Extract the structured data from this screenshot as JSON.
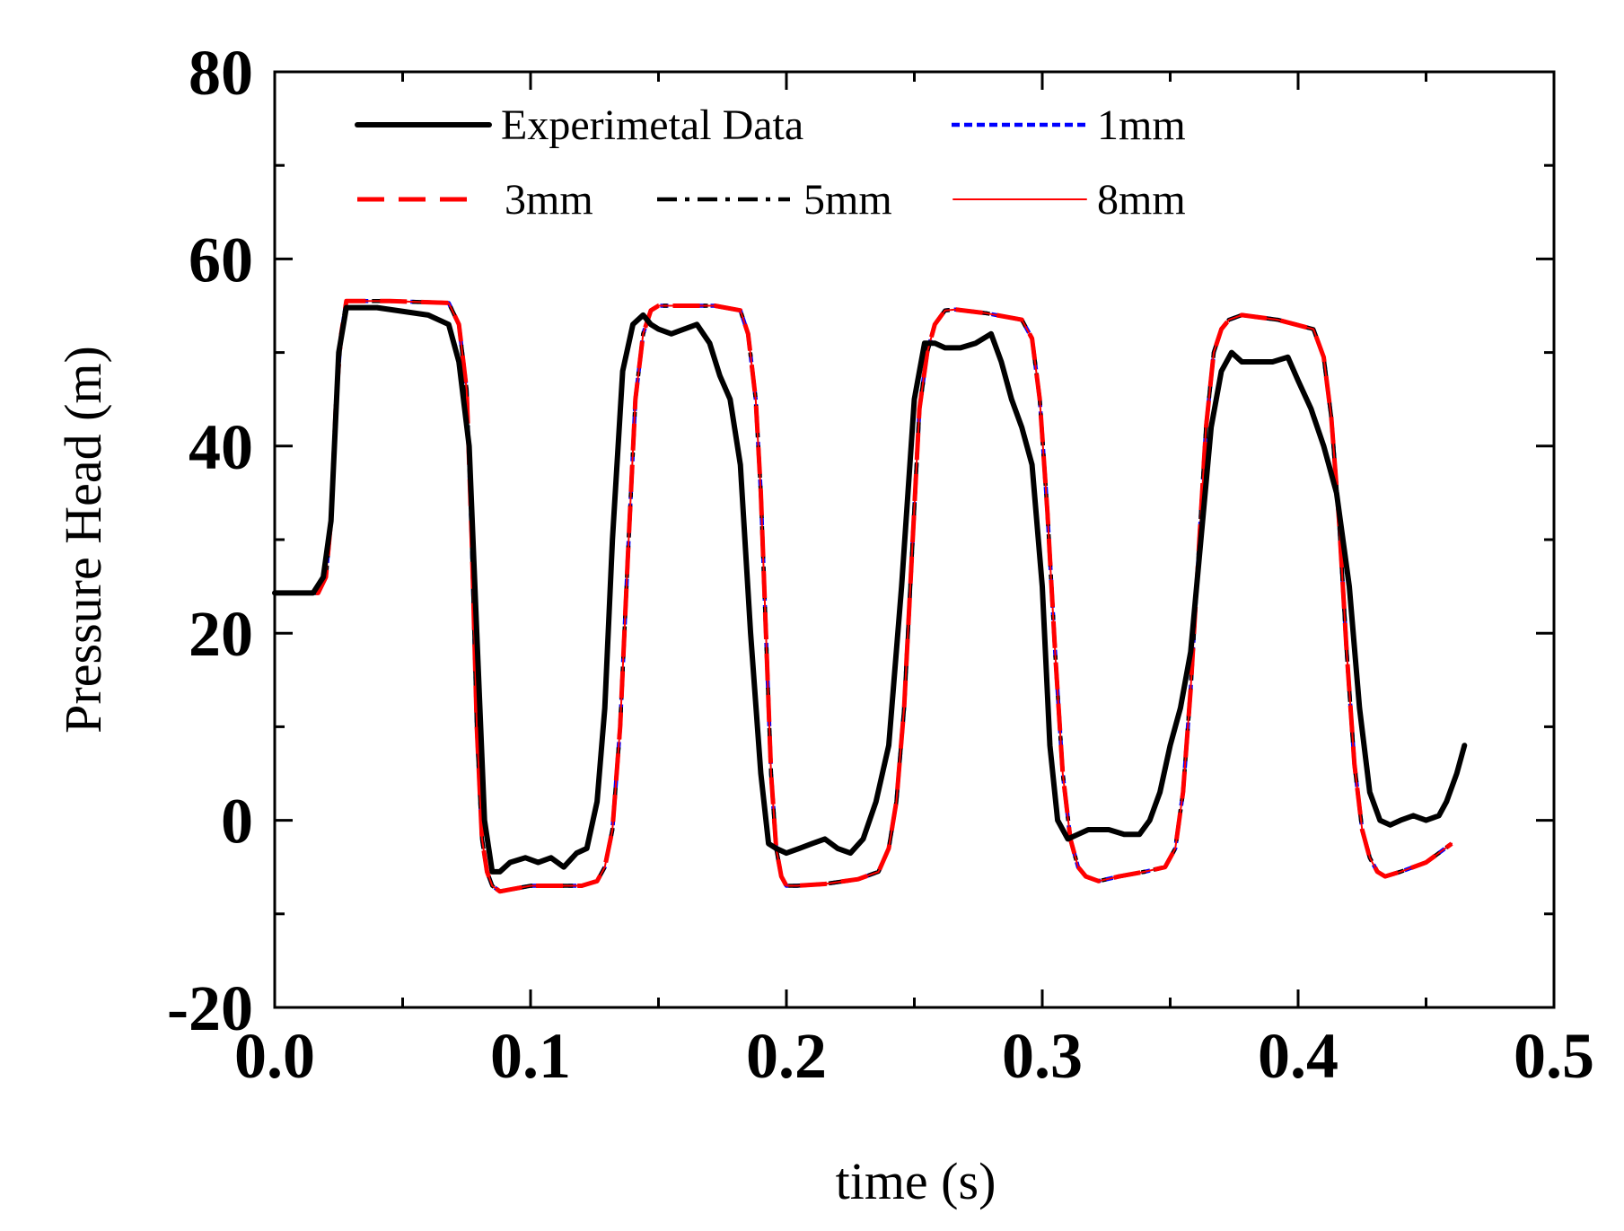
{
  "chart_data": {
    "type": "line",
    "title": "",
    "xlabel": "time (s)",
    "ylabel": "Pressure Head (m)",
    "xlim": [
      0.0,
      0.5
    ],
    "ylim": [
      -20,
      80
    ],
    "xticks": [
      0.0,
      0.1,
      0.2,
      0.3,
      0.4,
      0.5
    ],
    "xtick_labels": [
      "0.0",
      "0.1",
      "0.2",
      "0.3",
      "0.4",
      "0.5"
    ],
    "yticks": [
      -20,
      0,
      20,
      40,
      60,
      80
    ],
    "ytick_labels": [
      "-20",
      "0",
      "20",
      "40",
      "60",
      "80"
    ],
    "grid": false,
    "legend_position": "top",
    "series": [
      {
        "name": "Experimetal Data",
        "color": "#000000",
        "style": "solid-thick",
        "x": [
          0.0,
          0.015,
          0.019,
          0.022,
          0.025,
          0.028,
          0.04,
          0.06,
          0.068,
          0.072,
          0.076,
          0.079,
          0.082,
          0.085,
          0.088,
          0.092,
          0.098,
          0.103,
          0.108,
          0.113,
          0.118,
          0.122,
          0.126,
          0.129,
          0.132,
          0.136,
          0.14,
          0.144,
          0.147,
          0.15,
          0.155,
          0.16,
          0.165,
          0.17,
          0.174,
          0.178,
          0.182,
          0.186,
          0.19,
          0.193,
          0.196,
          0.2,
          0.205,
          0.21,
          0.215,
          0.22,
          0.225,
          0.23,
          0.235,
          0.24,
          0.245,
          0.25,
          0.254,
          0.258,
          0.262,
          0.268,
          0.274,
          0.28,
          0.284,
          0.288,
          0.292,
          0.296,
          0.3,
          0.303,
          0.306,
          0.31,
          0.314,
          0.318,
          0.322,
          0.326,
          0.332,
          0.338,
          0.342,
          0.346,
          0.35,
          0.354,
          0.358,
          0.362,
          0.366,
          0.37,
          0.374,
          0.378,
          0.384,
          0.39,
          0.396,
          0.4,
          0.405,
          0.41,
          0.415,
          0.42,
          0.424,
          0.428,
          0.432,
          0.436,
          0.44,
          0.445,
          0.45,
          0.455,
          0.458,
          0.462,
          0.465
        ],
        "y": [
          24.3,
          24.3,
          26,
          32,
          50,
          54.8,
          54.8,
          54,
          53,
          49,
          40,
          20,
          0,
          -5.5,
          -5.5,
          -4.5,
          -4,
          -4.5,
          -4,
          -5,
          -3.5,
          -3,
          2,
          12,
          30,
          48,
          53,
          54,
          53,
          52.5,
          52,
          52.5,
          53,
          51,
          47.5,
          45,
          38,
          20,
          5,
          -2.5,
          -3,
          -3.5,
          -3,
          -2.5,
          -2,
          -3,
          -3.5,
          -2,
          2,
          8,
          25,
          45,
          51,
          51,
          50.5,
          50.5,
          51,
          52,
          49,
          45,
          42,
          38,
          25,
          8,
          0,
          -2,
          -1.5,
          -1,
          -1,
          -1,
          -1.5,
          -1.5,
          0,
          3,
          8,
          12,
          18,
          30,
          42,
          48,
          50,
          49,
          49,
          49,
          49.5,
          47,
          44,
          40,
          35,
          25,
          12,
          3,
          0,
          -0.5,
          0,
          0.5,
          0,
          0.5,
          2,
          5,
          8
        ]
      },
      {
        "name": "1mm",
        "color": "#0000ff",
        "style": "dotted",
        "x": [
          0.0,
          0.017,
          0.02,
          0.022,
          0.024,
          0.026,
          0.028,
          0.045,
          0.068,
          0.072,
          0.075,
          0.077,
          0.079,
          0.081,
          0.083,
          0.085,
          0.088,
          0.092,
          0.1,
          0.11,
          0.12,
          0.126,
          0.129,
          0.132,
          0.135,
          0.138,
          0.141,
          0.144,
          0.147,
          0.15,
          0.16,
          0.172,
          0.182,
          0.185,
          0.188,
          0.19,
          0.192,
          0.194,
          0.196,
          0.198,
          0.2,
          0.204,
          0.215,
          0.228,
          0.236,
          0.24,
          0.243,
          0.246,
          0.249,
          0.252,
          0.255,
          0.258,
          0.262,
          0.266,
          0.278,
          0.292,
          0.296,
          0.299,
          0.302,
          0.305,
          0.308,
          0.311,
          0.314,
          0.317,
          0.322,
          0.33,
          0.34,
          0.348,
          0.352,
          0.355,
          0.358,
          0.361,
          0.364,
          0.367,
          0.37,
          0.373,
          0.378,
          0.392,
          0.406,
          0.41,
          0.413,
          0.416,
          0.419,
          0.422,
          0.425,
          0.428,
          0.431,
          0.434,
          0.44,
          0.45,
          0.46
        ],
        "y": [
          24.3,
          24.3,
          26,
          32,
          45,
          52,
          55.5,
          55.5,
          55.3,
          53,
          46,
          30,
          10,
          -2,
          -5.5,
          -7,
          -7.6,
          -7.4,
          -7,
          -7,
          -7,
          -6.5,
          -5,
          -1,
          10,
          28,
          45,
          52,
          54.5,
          55,
          55,
          55,
          54.5,
          52,
          45,
          35,
          20,
          5,
          -3,
          -6,
          -7,
          -7,
          -6.8,
          -6.3,
          -5.5,
          -3,
          2,
          12,
          28,
          44,
          50,
          53,
          54.5,
          54.6,
          54.2,
          53.5,
          51.5,
          45,
          33,
          18,
          5,
          -2,
          -5,
          -6,
          -6.5,
          -6,
          -5.5,
          -5,
          -3,
          3,
          14,
          28,
          42,
          50,
          52.5,
          53.5,
          54,
          53.5,
          52.5,
          49.5,
          43,
          32,
          18,
          6,
          -1,
          -4,
          -5.5,
          -6,
          -5.5,
          -4.5,
          -2.5
        ]
      },
      {
        "name": "3mm",
        "color": "#ff0000",
        "style": "dashed-long",
        "x": [
          0.0,
          0.017,
          0.02,
          0.022,
          0.024,
          0.026,
          0.028,
          0.045,
          0.068,
          0.072,
          0.075,
          0.077,
          0.079,
          0.081,
          0.083,
          0.085,
          0.088,
          0.092,
          0.1,
          0.11,
          0.12,
          0.126,
          0.129,
          0.132,
          0.135,
          0.138,
          0.141,
          0.144,
          0.147,
          0.15,
          0.16,
          0.172,
          0.182,
          0.185,
          0.188,
          0.19,
          0.192,
          0.194,
          0.196,
          0.198,
          0.2,
          0.204,
          0.215,
          0.228,
          0.236,
          0.24,
          0.243,
          0.246,
          0.249,
          0.252,
          0.255,
          0.258,
          0.262,
          0.266,
          0.278,
          0.292,
          0.296,
          0.299,
          0.302,
          0.305,
          0.308,
          0.311,
          0.314,
          0.317,
          0.322,
          0.33,
          0.34,
          0.348,
          0.352,
          0.355,
          0.358,
          0.361,
          0.364,
          0.367,
          0.37,
          0.373,
          0.378,
          0.392,
          0.406,
          0.41,
          0.413,
          0.416,
          0.419,
          0.422,
          0.425,
          0.428,
          0.431,
          0.434,
          0.44,
          0.45,
          0.46
        ],
        "y": [
          24.3,
          24.3,
          26,
          32,
          45,
          52,
          55.5,
          55.5,
          55.3,
          53,
          46,
          30,
          10,
          -2,
          -5.5,
          -7,
          -7.6,
          -7.4,
          -7,
          -7,
          -7,
          -6.5,
          -5,
          -1,
          10,
          28,
          45,
          52,
          54.5,
          55,
          55,
          55,
          54.5,
          52,
          45,
          35,
          20,
          5,
          -3,
          -6,
          -7,
          -7,
          -6.8,
          -6.3,
          -5.5,
          -3,
          2,
          12,
          28,
          44,
          50,
          53,
          54.5,
          54.6,
          54.2,
          53.5,
          51.5,
          45,
          33,
          18,
          5,
          -2,
          -5,
          -6,
          -6.5,
          -6,
          -5.5,
          -5,
          -3,
          3,
          14,
          28,
          42,
          50,
          52.5,
          53.5,
          54,
          53.5,
          52.5,
          49.5,
          43,
          32,
          18,
          6,
          -1,
          -4,
          -5.5,
          -6,
          -5.5,
          -4.5,
          -2.5
        ]
      },
      {
        "name": "5mm",
        "color": "#000000",
        "style": "dash-dot",
        "x": [
          0.0,
          0.017,
          0.02,
          0.022,
          0.024,
          0.026,
          0.028,
          0.045,
          0.068,
          0.072,
          0.075,
          0.077,
          0.079,
          0.081,
          0.083,
          0.085,
          0.088,
          0.092,
          0.1,
          0.11,
          0.12,
          0.126,
          0.129,
          0.132,
          0.135,
          0.138,
          0.141,
          0.144,
          0.147,
          0.15,
          0.16,
          0.172,
          0.182,
          0.185,
          0.188,
          0.19,
          0.192,
          0.194,
          0.196,
          0.198,
          0.2,
          0.204,
          0.215,
          0.228,
          0.236,
          0.24,
          0.243,
          0.246,
          0.249,
          0.252,
          0.255,
          0.258,
          0.262,
          0.266,
          0.278,
          0.292,
          0.296,
          0.299,
          0.302,
          0.305,
          0.308,
          0.311,
          0.314,
          0.317,
          0.322,
          0.33,
          0.34,
          0.348,
          0.352,
          0.355,
          0.358,
          0.361,
          0.364,
          0.367,
          0.37,
          0.373,
          0.378,
          0.392,
          0.406,
          0.41,
          0.413,
          0.416,
          0.419,
          0.422,
          0.425,
          0.428,
          0.431,
          0.434,
          0.44,
          0.45,
          0.46
        ],
        "y": [
          24.3,
          24.3,
          26,
          32,
          45,
          52,
          55.5,
          55.5,
          55.3,
          53,
          46,
          30,
          10,
          -2,
          -5.5,
          -7,
          -7.6,
          -7.4,
          -7,
          -7,
          -7,
          -6.5,
          -5,
          -1,
          10,
          28,
          45,
          52,
          54.5,
          55,
          55,
          55,
          54.5,
          52,
          45,
          35,
          20,
          5,
          -3,
          -6,
          -7,
          -7,
          -6.8,
          -6.3,
          -5.5,
          -3,
          2,
          12,
          28,
          44,
          50,
          53,
          54.5,
          54.6,
          54.2,
          53.5,
          51.5,
          45,
          33,
          18,
          5,
          -2,
          -5,
          -6,
          -6.5,
          -6,
          -5.5,
          -5,
          -3,
          3,
          14,
          28,
          42,
          50,
          52.5,
          53.5,
          54,
          53.5,
          52.5,
          49.5,
          43,
          32,
          18,
          6,
          -1,
          -4,
          -5.5,
          -6,
          -5.5,
          -4.5,
          -2.5
        ]
      },
      {
        "name": "8mm",
        "color": "#ff0000",
        "style": "solid-thin",
        "x": [
          0.0,
          0.017,
          0.02,
          0.022,
          0.024,
          0.026,
          0.028,
          0.045,
          0.068,
          0.072,
          0.075,
          0.077,
          0.079,
          0.081,
          0.083,
          0.085,
          0.088,
          0.092,
          0.1,
          0.11,
          0.12,
          0.126,
          0.129,
          0.132,
          0.135,
          0.138,
          0.141,
          0.144,
          0.147,
          0.15,
          0.16,
          0.172,
          0.182,
          0.185,
          0.188,
          0.19,
          0.192,
          0.194,
          0.196,
          0.198,
          0.2,
          0.204,
          0.215,
          0.228,
          0.236,
          0.24,
          0.243,
          0.246,
          0.249,
          0.252,
          0.255,
          0.258,
          0.262,
          0.266,
          0.278,
          0.292,
          0.296,
          0.299,
          0.302,
          0.305,
          0.308,
          0.311,
          0.314,
          0.317,
          0.322,
          0.33,
          0.34,
          0.348,
          0.352,
          0.355,
          0.358,
          0.361,
          0.364,
          0.367,
          0.37,
          0.373,
          0.378,
          0.392,
          0.406,
          0.41,
          0.413,
          0.416,
          0.419,
          0.422,
          0.425,
          0.428,
          0.431,
          0.434,
          0.44,
          0.45,
          0.46
        ],
        "y": [
          24.3,
          24.3,
          26,
          32,
          45,
          52,
          55.5,
          55.5,
          55.3,
          53,
          46,
          30,
          10,
          -2,
          -5.5,
          -7,
          -7.6,
          -7.4,
          -7,
          -7,
          -7,
          -6.5,
          -5,
          -1,
          10,
          28,
          45,
          52,
          54.5,
          55,
          55,
          55,
          54.5,
          52,
          45,
          35,
          20,
          5,
          -3,
          -6,
          -7,
          -7,
          -6.8,
          -6.3,
          -5.5,
          -3,
          2,
          12,
          28,
          44,
          50,
          53,
          54.5,
          54.6,
          54.2,
          53.5,
          51.5,
          45,
          33,
          18,
          5,
          -2,
          -5,
          -6,
          -6.5,
          -6,
          -5.5,
          -5,
          -3,
          3,
          14,
          28,
          42,
          50,
          52.5,
          53.5,
          54,
          53.5,
          52.5,
          49.5,
          43,
          32,
          18,
          6,
          -1,
          -4,
          -5.5,
          -6,
          -5.5,
          -4.5,
          -2.5
        ]
      }
    ]
  }
}
